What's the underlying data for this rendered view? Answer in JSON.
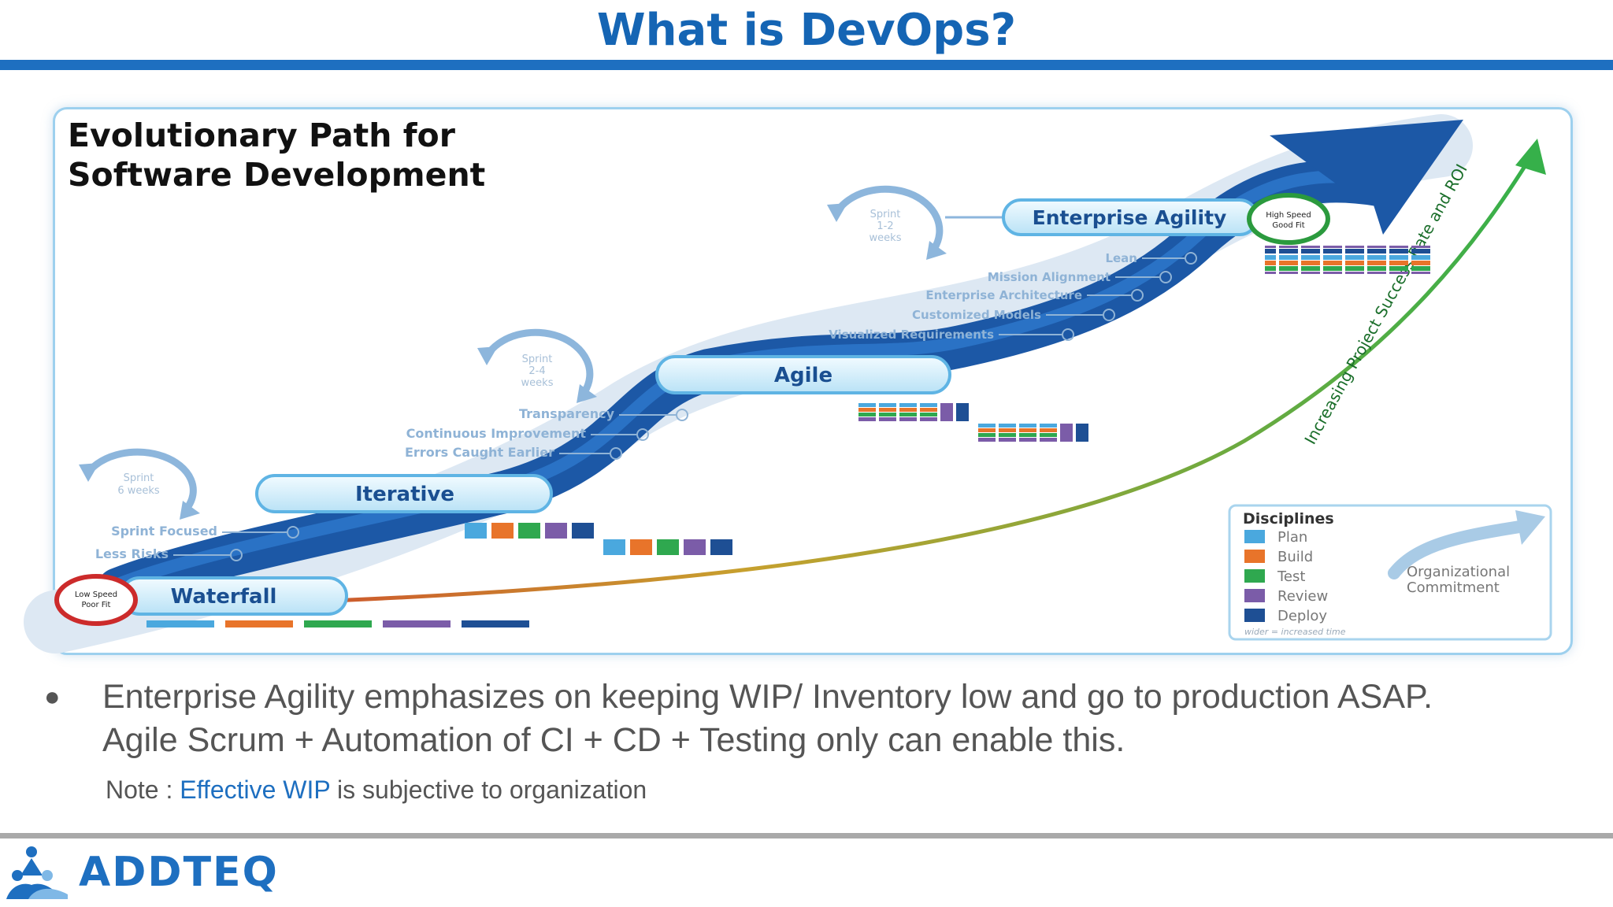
{
  "slide": {
    "title": "What is DevOps?"
  },
  "diagram": {
    "heading_line1": "Evolutionary Path for",
    "heading_line2": "Software Development",
    "stages": [
      {
        "label": "Waterfall"
      },
      {
        "label": "Iterative"
      },
      {
        "label": "Agile"
      },
      {
        "label": "Enterprise Agility"
      }
    ],
    "sprint_cycles": [
      {
        "line1": "Sprint",
        "line2": "6 weeks"
      },
      {
        "line1": "Sprint",
        "line2": "2-4",
        "line3": "weeks"
      },
      {
        "line1": "Sprint",
        "line2": "1-2",
        "line3": "weeks"
      }
    ],
    "badge_low": {
      "line1": "Low Speed",
      "line2": "Poor Fit"
    },
    "badge_high": {
      "line1": "High Speed",
      "line2": "Good Fit"
    },
    "waterfall_features": [
      "Sprint Focused",
      "Less Risks"
    ],
    "iterative_features": [
      "Transparency",
      "Continuous Improvement",
      "Errors Caught Earlier"
    ],
    "agile_features": [
      "Lean",
      "Mission Alignment",
      "Enterprise Architecture",
      "Customized Models",
      "Visualized Requirements"
    ],
    "curve_label": "Increasing Project Success Rate and ROI",
    "legend": {
      "title": "Disciplines",
      "items": [
        {
          "label": "Plan",
          "color": "#4aa8de"
        },
        {
          "label": "Build",
          "color": "#e8742a"
        },
        {
          "label": "Test",
          "color": "#2fa84f"
        },
        {
          "label": "Review",
          "color": "#7b5ca8"
        },
        {
          "label": "Deploy",
          "color": "#1e4f94"
        }
      ],
      "footnote": "wider = increased time",
      "commitment_line1": "Organizational",
      "commitment_line2": "Commitment"
    }
  },
  "content": {
    "bullet_line1": "Enterprise Agility emphasizes on keeping WIP/ Inventory low and go to production ASAP.",
    "bullet_line2": "Agile Scrum + Automation of CI + CD + Testing only can enable this.",
    "note_prefix": "Note : ",
    "note_highlight": "Effective WIP",
    "note_suffix": " is subjective to organization"
  },
  "footer": {
    "brand": "ADDTEQ"
  }
}
